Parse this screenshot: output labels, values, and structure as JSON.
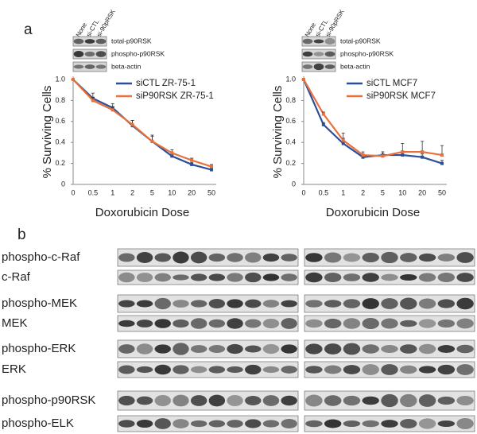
{
  "panel_a": {
    "label": "a",
    "blots": [
      {
        "headers": [
          "None",
          "si-CTL",
          "si-90pRSK"
        ],
        "rows": [
          "total-p90RSK",
          "phospho-p90RSK",
          "beta-actin"
        ]
      },
      {
        "headers": [
          "None",
          "si-CTL",
          "si-90pRSK"
        ],
        "rows": [
          "total-p90RSK",
          "phospho-p90RSK",
          "beta-actin"
        ]
      }
    ]
  },
  "chart_data": [
    {
      "type": "line",
      "x_label": "Doxorubicin Dose",
      "y_label": "% Surviving Cells",
      "categories": [
        "0",
        "0.5",
        "1",
        "2",
        "5",
        "10",
        "20",
        "50"
      ],
      "ylim": [
        0,
        1
      ],
      "yticks": [
        0,
        0.2,
        0.4,
        0.6,
        0.8,
        {
          "value": 1,
          "label": "1.0"
        }
      ],
      "legend": "upper right",
      "series": [
        {
          "name": "siCTL ZR-75-1",
          "color": "#2c4f9a",
          "values": [
            1.0,
            0.82,
            0.73,
            0.56,
            0.41,
            0.27,
            0.19,
            0.14
          ],
          "errors": [
            0,
            0.05,
            0.04,
            0.05,
            0.05,
            0.02,
            0.02,
            0.02
          ]
        },
        {
          "name": "siP90RSK ZR-75-1",
          "color": "#e8703a",
          "values": [
            1.0,
            0.8,
            0.71,
            0.57,
            0.41,
            0.3,
            0.23,
            0.17
          ],
          "errors": [
            0,
            0.03,
            0.03,
            0.04,
            0.06,
            0.03,
            0.02,
            0.02
          ]
        }
      ]
    },
    {
      "type": "line",
      "x_label": "Doxorubicin Dose",
      "y_label": "% Surviving Cells",
      "categories": [
        "0",
        "0.5",
        "1",
        "2",
        "5",
        "10",
        "20",
        "50"
      ],
      "ylim": [
        0,
        1
      ],
      "yticks": [
        0,
        0.2,
        0.4,
        0.6,
        0.8,
        {
          "value": 1,
          "label": "1.0"
        }
      ],
      "legend": "upper right",
      "series": [
        {
          "name": "siCTL MCF7",
          "color": "#2c4f9a",
          "values": [
            1.0,
            0.57,
            0.39,
            0.26,
            0.28,
            0.28,
            0.26,
            0.2
          ],
          "errors": [
            0,
            0.02,
            0.05,
            0.03,
            0.03,
            0.03,
            0.03,
            0.03
          ]
        },
        {
          "name": "siP90RSK MCF7",
          "color": "#e8703a",
          "values": [
            1.0,
            0.67,
            0.42,
            0.28,
            0.27,
            0.31,
            0.31,
            0.28
          ],
          "errors": [
            0,
            0.02,
            0.07,
            0.03,
            0.04,
            0.08,
            0.1,
            0.09
          ]
        }
      ]
    }
  ],
  "panel_b": {
    "label": "b",
    "rows": [
      "phospho-c-Raf",
      "c-Raf",
      "phospho-MEK",
      "MEK",
      "phospho-ERK",
      "ERK",
      "phospho-p90RSK",
      "phospho-ELK"
    ]
  }
}
